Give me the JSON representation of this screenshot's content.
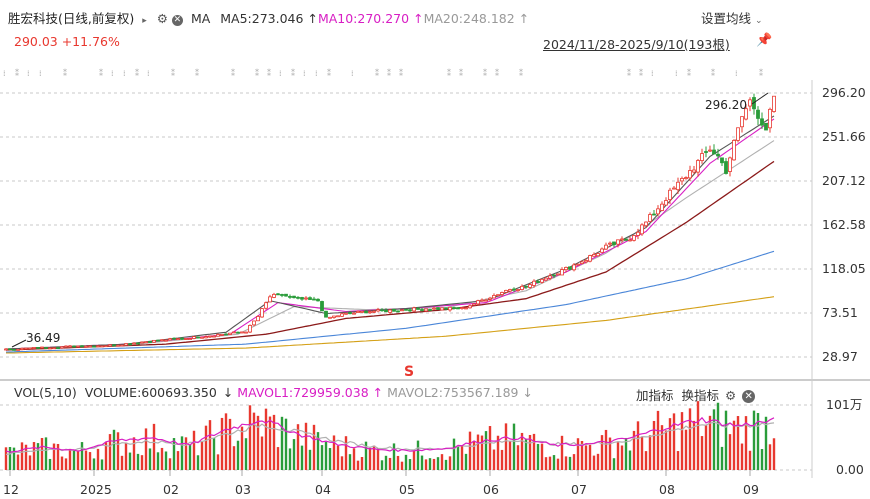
{
  "header": {
    "stock_name": "胜宏科技",
    "period": "(日线,前复权)",
    "indicator": "MA",
    "ma5": "MA5:273.046",
    "ma10": "MA10:270.270",
    "ma20": "MA20:248.182",
    "settings_label": "设置均线",
    "price_line": "290.03  +11.76%",
    "date_range": "2024/11/28-2025/9/10(193根)"
  },
  "volume_header": {
    "vol_label": "VOL(5,10)",
    "volume": "VOLUME:600693.350",
    "mavol1": "MAVOL1:729959.038",
    "mavol2": "MAVOL2:753567.189",
    "add_indicator": "加指标",
    "switch_indicator": "换指标"
  },
  "colors": {
    "up": "#e8382f",
    "down": "#2a9c3a",
    "ma5": "#555555",
    "ma10": "#d81ec4",
    "ma20": "#b0b0b0",
    "ma60": "#8b1a1a",
    "ma120": "#4a86d8",
    "ma250": "#d4a017"
  },
  "chart_data": {
    "type": "candlestick",
    "y_ticks": [
      "296.20",
      "251.66",
      "207.12",
      "162.58",
      "118.05",
      "73.51",
      "28.97"
    ],
    "ylim": [
      28.97,
      296.2
    ],
    "x_ticks": [
      "12",
      "2025",
      "02",
      "03",
      "04",
      "05",
      "06",
      "07",
      "08",
      "09"
    ],
    "annotations": {
      "max_label": "296.20",
      "min_label": "36.49",
      "marker": "S"
    },
    "volume_ticks": [
      "101万",
      "0.00"
    ],
    "anchor_prices": [
      [
        0,
        36.5
      ],
      [
        9,
        38.5
      ],
      [
        18,
        40
      ],
      [
        27,
        41
      ],
      [
        36,
        45
      ],
      [
        45,
        48
      ],
      [
        54,
        52
      ],
      [
        60,
        55
      ],
      [
        63,
        70
      ],
      [
        66,
        90
      ],
      [
        69,
        92
      ],
      [
        72,
        88
      ],
      [
        78,
        86
      ],
      [
        80,
        68
      ],
      [
        84,
        72
      ],
      [
        90,
        75
      ],
      [
        96,
        76
      ],
      [
        105,
        78
      ],
      [
        114,
        78
      ],
      [
        120,
        88
      ],
      [
        126,
        98
      ],
      [
        130,
        100
      ],
      [
        135,
        110
      ],
      [
        140,
        118
      ],
      [
        145,
        128
      ],
      [
        150,
        140
      ],
      [
        156,
        150
      ],
      [
        160,
        165
      ],
      [
        165,
        190
      ],
      [
        169,
        208
      ],
      [
        173,
        226
      ],
      [
        176,
        240
      ],
      [
        178,
        232
      ],
      [
        180,
        218
      ],
      [
        182,
        245
      ],
      [
        184,
        272
      ],
      [
        186,
        288
      ],
      [
        188,
        275
      ],
      [
        190,
        260
      ],
      [
        192,
        290
      ]
    ],
    "ma_anchors": {
      "ma5": [
        [
          0,
          37
        ],
        [
          30,
          42
        ],
        [
          55,
          54
        ],
        [
          66,
          86
        ],
        [
          80,
          73
        ],
        [
          100,
          78
        ],
        [
          120,
          86
        ],
        [
          140,
          118
        ],
        [
          160,
          160
        ],
        [
          176,
          232
        ],
        [
          192,
          273
        ]
      ],
      "ma10": [
        [
          0,
          37
        ],
        [
          30,
          42
        ],
        [
          56,
          52
        ],
        [
          68,
          84
        ],
        [
          85,
          75
        ],
        [
          100,
          78
        ],
        [
          120,
          84
        ],
        [
          140,
          115
        ],
        [
          160,
          156
        ],
        [
          176,
          225
        ],
        [
          192,
          270
        ]
      ],
      "ma20": [
        [
          0,
          37
        ],
        [
          30,
          41
        ],
        [
          58,
          52
        ],
        [
          72,
          80
        ],
        [
          90,
          77
        ],
        [
          110,
          79
        ],
        [
          130,
          96
        ],
        [
          150,
          134
        ],
        [
          170,
          190
        ],
        [
          192,
          248
        ]
      ],
      "ma60": [
        [
          0,
          36
        ],
        [
          40,
          42
        ],
        [
          65,
          52
        ],
        [
          85,
          68
        ],
        [
          110,
          77
        ],
        [
          130,
          88
        ],
        [
          150,
          115
        ],
        [
          170,
          165
        ],
        [
          192,
          227
        ]
      ],
      "ma120": [
        [
          0,
          34
        ],
        [
          60,
          42
        ],
        [
          100,
          58
        ],
        [
          140,
          82
        ],
        [
          170,
          108
        ],
        [
          192,
          136
        ]
      ],
      "ma250": [
        [
          0,
          33
        ],
        [
          60,
          38
        ],
        [
          110,
          50
        ],
        [
          150,
          66
        ],
        [
          192,
          90
        ]
      ]
    },
    "mavol_anchors": {
      "mavol1": [
        0.28,
        0.35,
        0.3,
        0.45,
        0.5,
        0.38,
        0.62,
        0.78,
        0.55,
        0.4,
        0.32,
        0.3,
        0.33,
        0.45,
        0.5,
        0.38,
        0.4,
        0.48,
        0.65,
        0.78,
        0.68,
        0.76
      ],
      "mavol2": [
        0.25,
        0.3,
        0.32,
        0.4,
        0.44,
        0.4,
        0.55,
        0.7,
        0.58,
        0.45,
        0.36,
        0.32,
        0.33,
        0.4,
        0.46,
        0.4,
        0.4,
        0.45,
        0.58,
        0.7,
        0.68,
        0.72
      ]
    }
  }
}
